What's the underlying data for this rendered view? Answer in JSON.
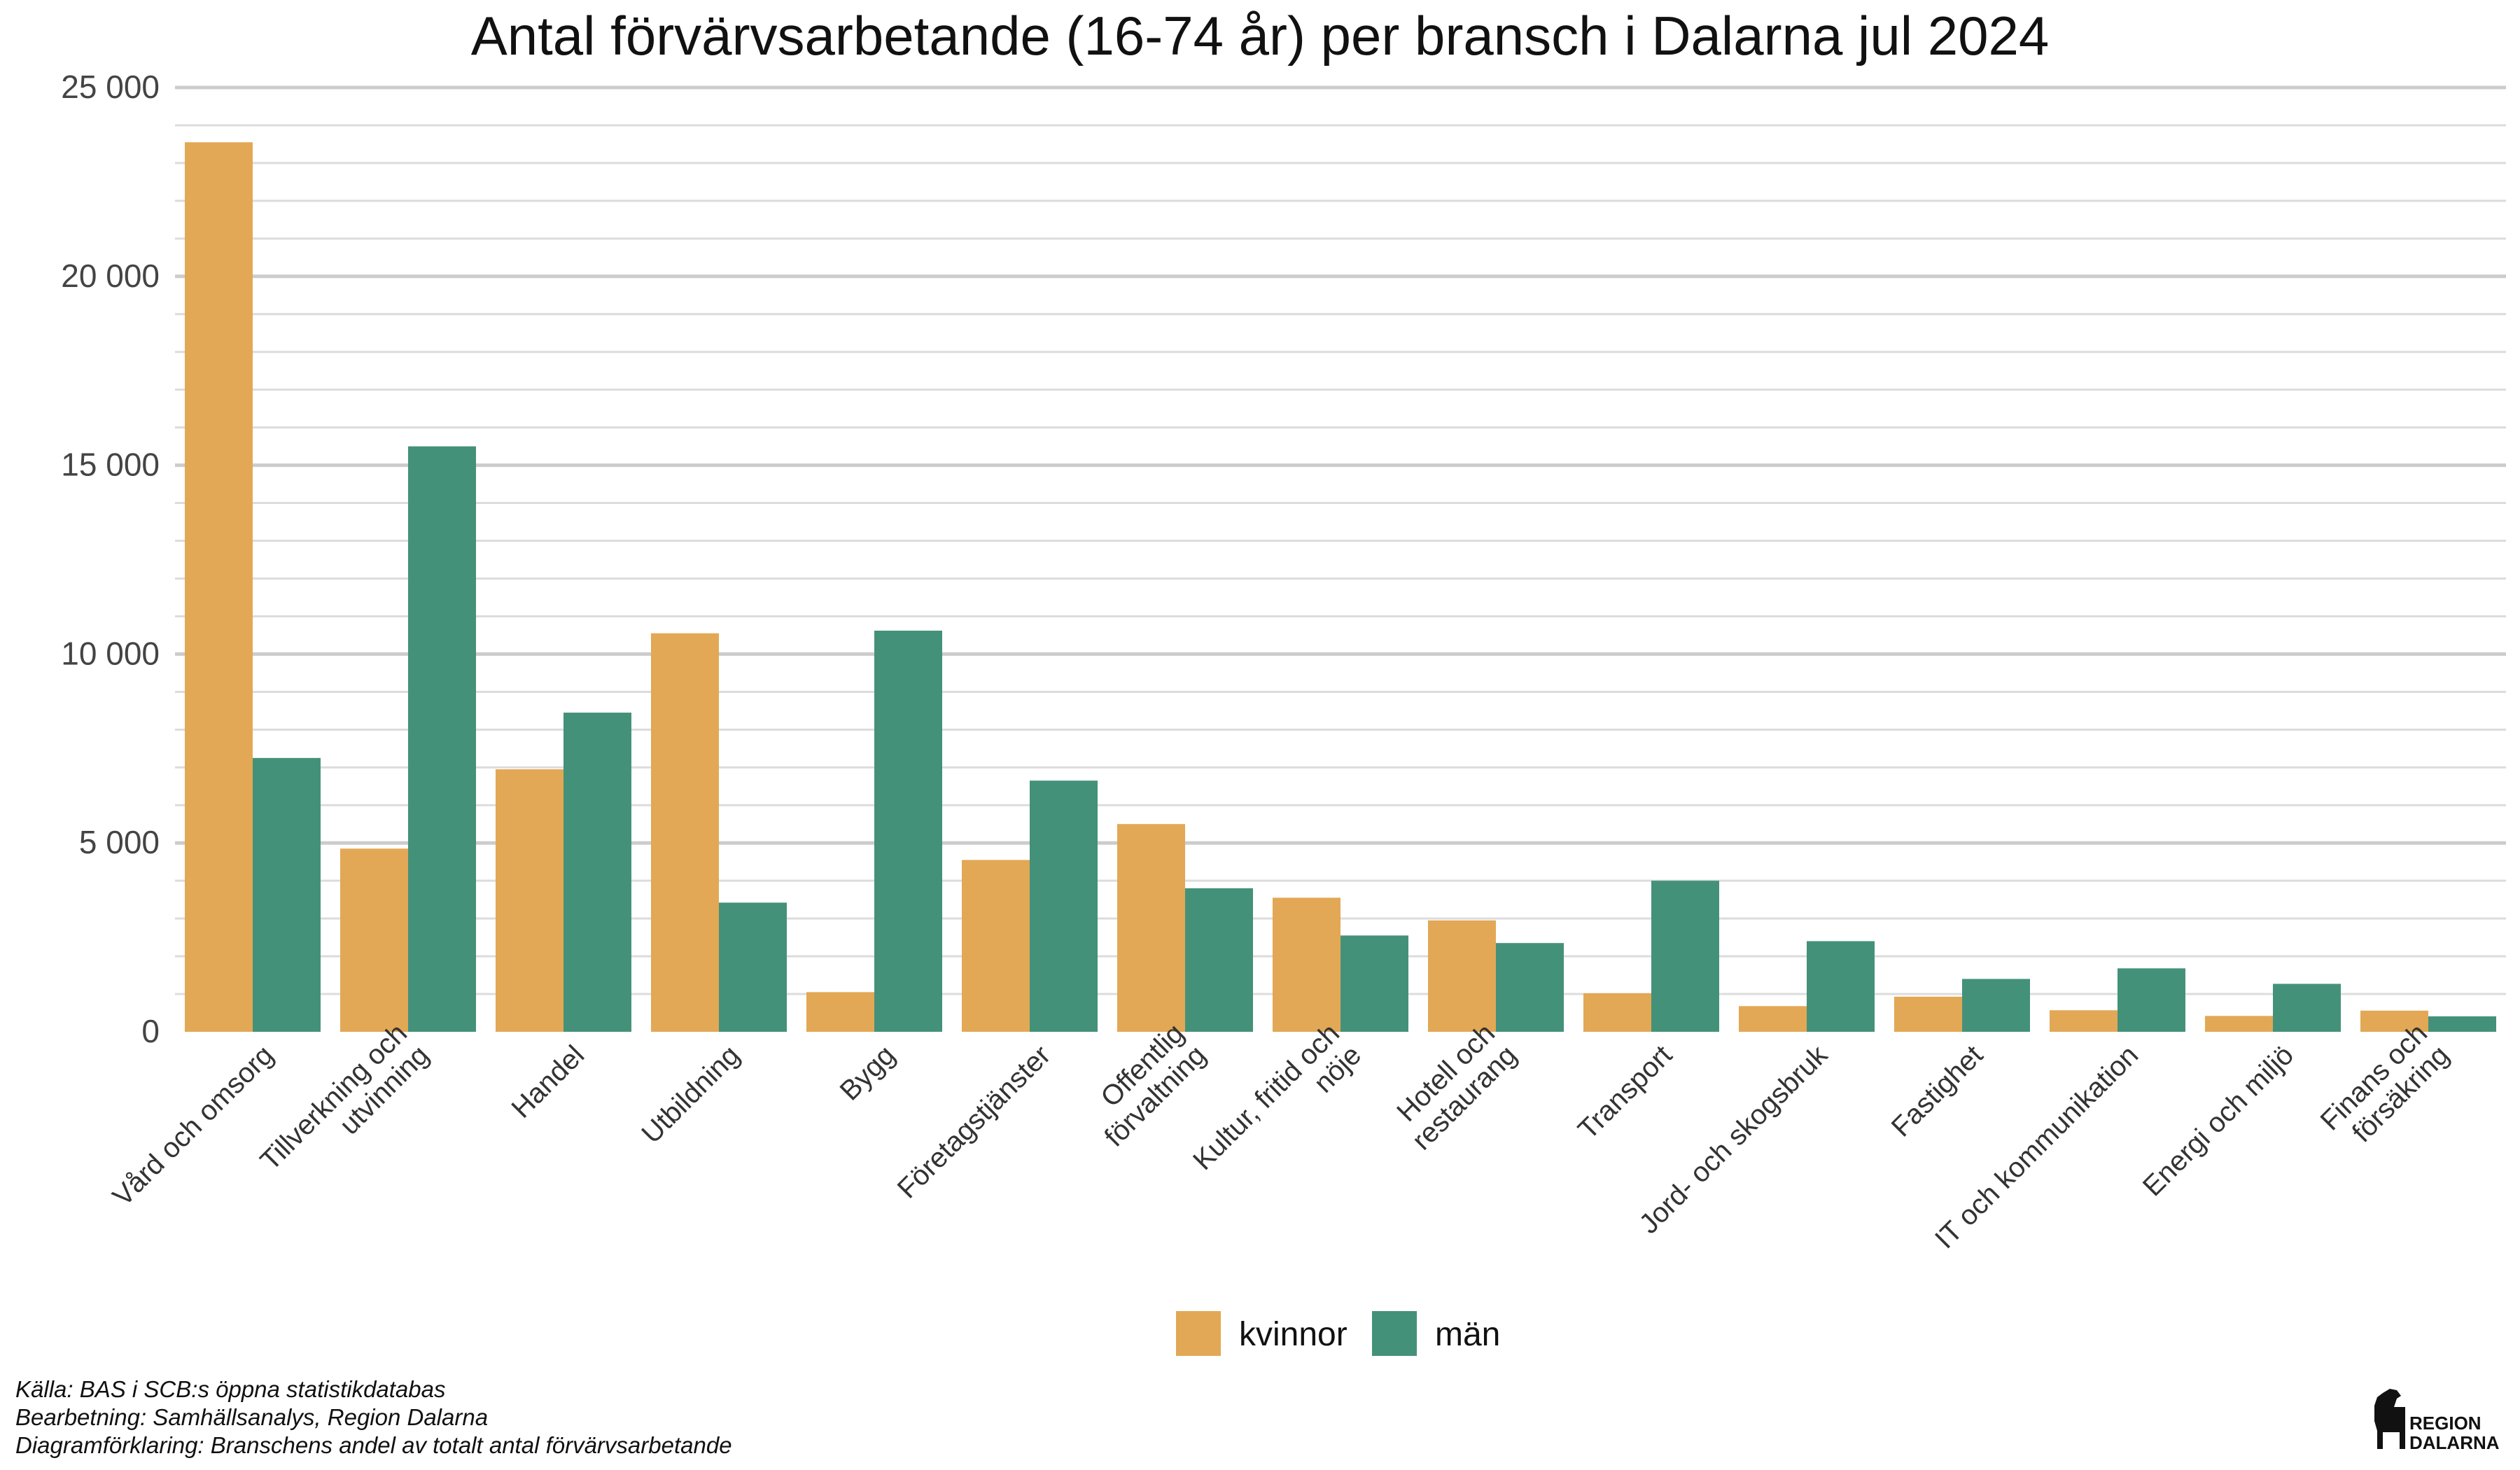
{
  "chart_data": {
    "type": "bar",
    "title": "Antal förvärvsarbetande (16-74 år) per bransch i Dalarna jul 2024",
    "xlabel": "",
    "ylabel": "",
    "ylim": [
      0,
      25000
    ],
    "yticks": [
      0,
      5000,
      10000,
      15000,
      20000,
      25000
    ],
    "ytick_labels": [
      "0",
      "5 000",
      "10 000",
      "15 000",
      "20 000",
      "25 000"
    ],
    "grid": true,
    "legend_position": "bottom",
    "categories": [
      [
        "Vård och omsorg"
      ],
      [
        "Tillverkning och",
        "utvinning"
      ],
      [
        "Handel"
      ],
      [
        "Utbildning"
      ],
      [
        "Bygg"
      ],
      [
        "Företagstjänster"
      ],
      [
        "Offentlig",
        "förvaltning"
      ],
      [
        "Kultur, fritid och",
        "nöje"
      ],
      [
        "Hotell och",
        "restaurang"
      ],
      [
        "Transport"
      ],
      [
        "Jord- och skogsbruk"
      ],
      [
        "Fastighet"
      ],
      [
        "IT och kommunikation"
      ],
      [
        "Energi och miljö"
      ],
      [
        "Finans och",
        "försäkring"
      ]
    ],
    "series": [
      {
        "name": "kvinnor",
        "color": "#E2A855",
        "values": [
          23550,
          4850,
          6950,
          10550,
          1050,
          4550,
          5500,
          3550,
          2950,
          1020,
          680,
          930,
          570,
          420,
          560
        ]
      },
      {
        "name": "män",
        "color": "#44917A",
        "values": [
          7250,
          15500,
          8450,
          3420,
          10620,
          6650,
          3800,
          2550,
          2350,
          4000,
          2400,
          1400,
          1680,
          1270,
          410
        ]
      }
    ]
  },
  "caption": {
    "line1": "Källa: BAS i SCB:s öppna statistikdatabas",
    "line2": "Bearbetning: Samhällsanalys, Region Dalarna",
    "line3": "Diagramförklaring: Branschens andel av totalt antal förvärvsarbetande"
  },
  "logo": {
    "line1": "REGION",
    "line2": "DALARNA"
  }
}
